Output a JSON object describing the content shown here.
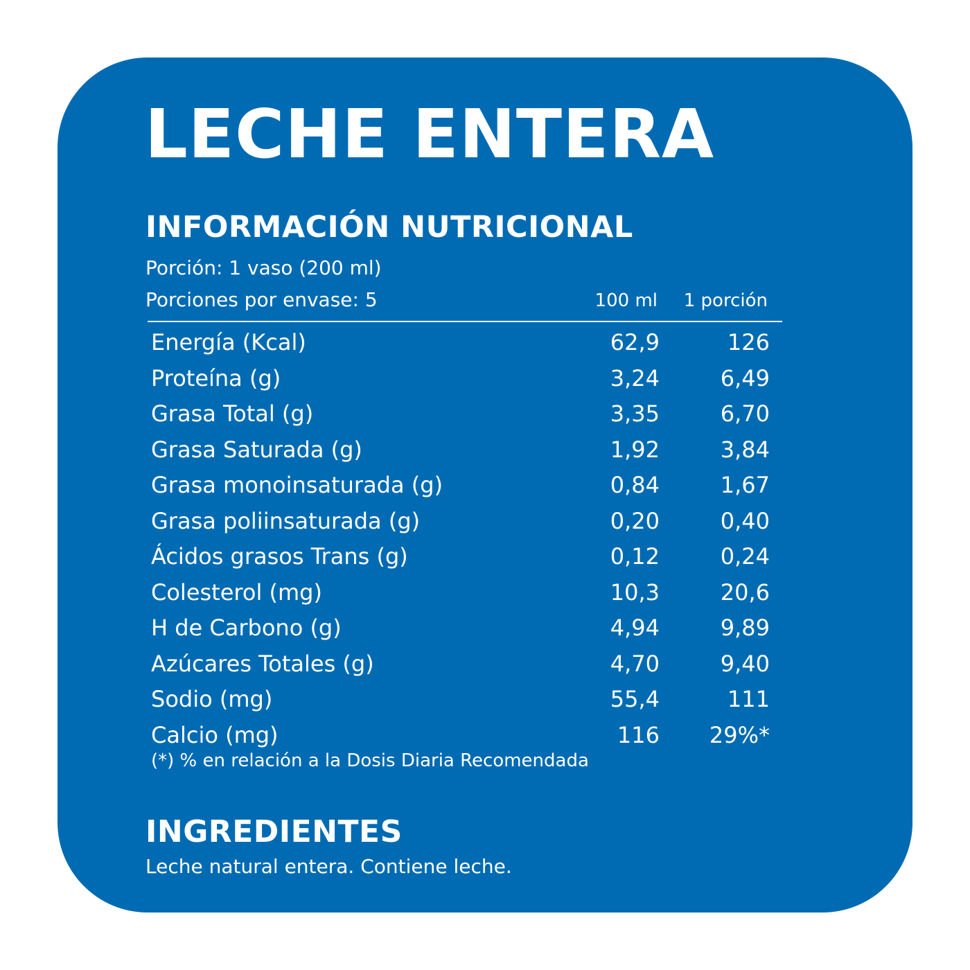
{
  "title": "LECHE ENTERA",
  "subtitle": "INFORMACIÓN NUTRICIONAL",
  "serving_size": "Porción: 1 vaso (200 ml)",
  "servings_per_container": "Porciones por envase: 5",
  "columns": [
    "100 ml",
    "1 porción"
  ],
  "rows": [
    {
      "label": "Energía (Kcal)",
      "per_100ml": "62,9",
      "per_portion": "126"
    },
    {
      "label": "Proteína (g)",
      "per_100ml": "3,24",
      "per_portion": "6,49"
    },
    {
      "label": "Grasa Total (g)",
      "per_100ml": "3,35",
      "per_portion": "6,70"
    },
    {
      "label": "Grasa Saturada (g)",
      "per_100ml": "1,92",
      "per_portion": "3,84"
    },
    {
      "label": "Grasa monoinsaturada (g)",
      "per_100ml": "0,84",
      "per_portion": "1,67"
    },
    {
      "label": "Grasa poliinsaturada (g)",
      "per_100ml": "0,20",
      "per_portion": "0,40"
    },
    {
      "label": "Ácidos grasos Trans (g)",
      "per_100ml": "0,12",
      "per_portion": "0,24"
    },
    {
      "label": "Colesterol (mg)",
      "per_100ml": "10,3",
      "per_portion": "20,6"
    },
    {
      "label": "H de Carbono (g)",
      "per_100ml": "4,94",
      "per_portion": "9,89"
    },
    {
      "label": "Azúcares Totales (g)",
      "per_100ml": "4,70",
      "per_portion": "9,40"
    },
    {
      "label": "Sodio (mg)",
      "per_100ml": "55,4",
      "per_portion": "111"
    },
    {
      "label": "Calcio (mg)",
      "per_100ml": "116",
      "per_portion": "29%*"
    }
  ],
  "footnote": "(*) % en relación a la Dosis Diaria Recomendada",
  "ingredients_title": "INGREDIENTES",
  "ingredients_text": "Leche natural entera. Contiene leche.",
  "colors": {
    "background": "#ffffff",
    "card": "#006bb3",
    "text": "#ffffff"
  }
}
